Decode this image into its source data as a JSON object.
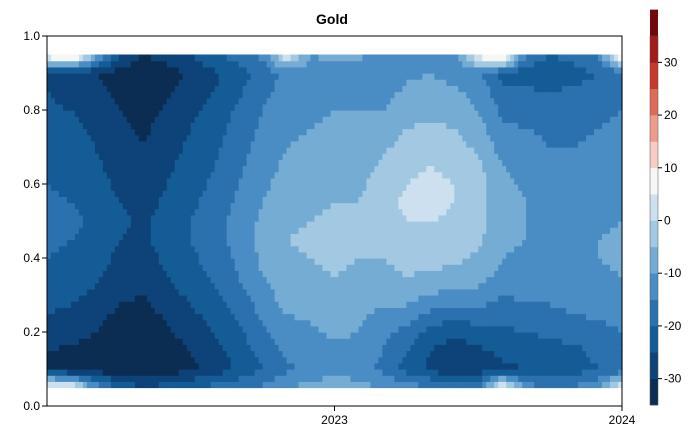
{
  "chart_data": {
    "type": "heatmap",
    "title": "Gold",
    "xlabel": "",
    "ylabel": "",
    "x_domain": [
      "2022-01",
      "2024-01"
    ],
    "ylim": [
      0.0,
      1.0
    ],
    "x_ticks": [
      {
        "value": "2023-01",
        "label": "2023"
      },
      {
        "value": "2024-01",
        "label": "2024"
      }
    ],
    "y_ticks": [
      {
        "value": 0.0,
        "label": "0.0"
      },
      {
        "value": 0.2,
        "label": "0.2"
      },
      {
        "value": 0.4,
        "label": "0.4"
      },
      {
        "value": 0.6,
        "label": "0.6"
      },
      {
        "value": 0.8,
        "label": "0.8"
      },
      {
        "value": 1.0,
        "label": "1.0"
      }
    ],
    "data_y_range": [
      0.05,
      0.95
    ],
    "colorbar": {
      "range": [
        -35,
        35
      ],
      "ticks": [
        -30,
        -20,
        -10,
        0,
        10,
        20,
        30
      ],
      "tick_labels": [
        "-30",
        "-20",
        "-10",
        "0",
        "10",
        "20",
        "30"
      ],
      "step": 5,
      "palette": [
        "#0b2d52",
        "#0d4378",
        "#145c96",
        "#2a71ae",
        "#4a8dc4",
        "#74acd4",
        "#a3c8e2",
        "#cde0ef",
        "#f6f6f6",
        "#f6ccc4",
        "#eb9c8a",
        "#dc6b57",
        "#c63a2c",
        "#a41b1c",
        "#700a0c"
      ]
    },
    "grid_months": [
      "2022-01",
      "2022-02",
      "2022-03",
      "2022-04",
      "2022-05",
      "2022-06",
      "2022-07",
      "2022-08",
      "2022-09",
      "2022-10",
      "2022-11",
      "2022-12",
      "2023-01",
      "2023-02",
      "2023-03",
      "2023-04",
      "2023-05",
      "2023-06",
      "2023-07",
      "2023-08",
      "2023-09",
      "2023-10",
      "2023-11",
      "2023-12",
      "2024-01"
    ],
    "grid_y": [
      0.05,
      0.1,
      0.15,
      0.2,
      0.25,
      0.3,
      0.35,
      0.4,
      0.45,
      0.5,
      0.55,
      0.6,
      0.65,
      0.7,
      0.75,
      0.8,
      0.85,
      0.9,
      0.95
    ],
    "values": [
      [
        12,
        -30,
        -30,
        -27,
        -25,
        -23,
        -21,
        -20,
        -19,
        -18,
        -19,
        -20,
        -21,
        -22,
        -23,
        -24,
        -25,
        -26,
        10
      ],
      [
        8,
        -32,
        -31,
        -28,
        -26,
        -24,
        -22,
        -21,
        -20,
        -19,
        -20,
        -21,
        -22,
        -23,
        -24,
        -25,
        -27,
        -29,
        18
      ],
      [
        -10,
        -33,
        -32,
        -30,
        -28,
        -26,
        -24,
        -23,
        -22,
        -21,
        -22,
        -23,
        -24,
        -25,
        -26,
        -27,
        -29,
        -30,
        -5
      ],
      [
        -20,
        -34,
        -34,
        -33,
        -31,
        -29,
        -27,
        -26,
        -25,
        -24,
        -25,
        -26,
        -27,
        -28,
        -29,
        -30,
        -31,
        -32,
        -25
      ],
      [
        -25,
        -35,
        -34,
        -33,
        -32,
        -30,
        -28,
        -27,
        -26,
        -26,
        -27,
        -28,
        -29,
        -30,
        -31,
        -32,
        -33,
        -34,
        -30
      ],
      [
        -22,
        -33,
        -32,
        -31,
        -29,
        -27,
        -25,
        -24,
        -23,
        -23,
        -24,
        -25,
        -26,
        -27,
        -28,
        -29,
        -31,
        -32,
        -28
      ],
      [
        -20,
        -31,
        -30,
        -28,
        -26,
        -24,
        -22,
        -21,
        -20,
        -20,
        -21,
        -22,
        -23,
        -24,
        -25,
        -26,
        -28,
        -29,
        -25
      ],
      [
        -18,
        -28,
        -27,
        -25,
        -23,
        -21,
        -19,
        -18,
        -17,
        -17,
        -18,
        -19,
        -20,
        -21,
        -22,
        -23,
        -25,
        -26,
        -20
      ],
      [
        -16,
        -24,
        -23,
        -21,
        -19,
        -17,
        -15,
        -14,
        -13,
        -13,
        -14,
        -15,
        -16,
        -17,
        -18,
        -19,
        -21,
        -22,
        -18
      ],
      [
        -14,
        -20,
        -18,
        -16,
        -14,
        -12,
        -10,
        -9,
        -8,
        -9,
        -10,
        -11,
        -12,
        -13,
        -14,
        -15,
        -16,
        -18,
        -14
      ],
      [
        -10,
        -16,
        -14,
        -12,
        -10,
        -8,
        -7,
        -6,
        -5,
        -6,
        -7,
        -8,
        -9,
        -10,
        -11,
        -12,
        -13,
        -14,
        5
      ],
      [
        -8,
        -14,
        -13,
        -11,
        -9,
        -7,
        -6,
        -5,
        -4,
        -5,
        -6,
        -7,
        -8,
        -9,
        -10,
        -11,
        -12,
        -13,
        -10
      ],
      [
        -6,
        -12,
        -11,
        -9,
        -7,
        -6,
        -5,
        -4,
        -4,
        -4,
        -5,
        -6,
        -7,
        -8,
        -9,
        -10,
        -11,
        -12,
        -8
      ],
      [
        -8,
        -13,
        -12,
        -10,
        -9,
        -7,
        -6,
        -5,
        -4,
        -4,
        -5,
        -6,
        -7,
        -8,
        -9,
        -10,
        -11,
        -12,
        -9
      ],
      [
        -10,
        -16,
        -15,
        -13,
        -11,
        -9,
        -7,
        -5,
        -3,
        -2,
        -2,
        -3,
        -4,
        -6,
        -8,
        -10,
        -12,
        -14,
        -12
      ],
      [
        -12,
        -22,
        -20,
        -17,
        -12,
        -8,
        -5,
        -3,
        -1,
        0,
        1,
        0,
        -1,
        -3,
        -5,
        -7,
        -9,
        -11,
        -10
      ],
      [
        -14,
        -26,
        -25,
        -22,
        -16,
        -10,
        -6,
        -3,
        -1,
        0,
        2,
        1,
        0,
        -2,
        -4,
        -6,
        -8,
        -10,
        -12
      ],
      [
        -16,
        -30,
        -28,
        -24,
        -18,
        -12,
        -7,
        -4,
        -2,
        -1,
        0,
        0,
        -1,
        -3,
        -5,
        -7,
        -9,
        -12,
        -14
      ],
      [
        -18,
        -28,
        -26,
        -22,
        -17,
        -12,
        -8,
        -6,
        -4,
        -3,
        -3,
        -3,
        -4,
        -6,
        -8,
        -10,
        -12,
        -14,
        8
      ],
      [
        10,
        -26,
        -24,
        -21,
        -18,
        -15,
        -12,
        -10,
        -9,
        -8,
        -8,
        -9,
        -10,
        -12,
        -14,
        -16,
        -18,
        -22,
        15
      ],
      [
        -12,
        -25,
        -23,
        -20,
        -17,
        -14,
        -12,
        -11,
        -10,
        -10,
        -10,
        -11,
        -12,
        -13,
        -15,
        -17,
        -19,
        -23,
        -15
      ],
      [
        -16,
        -24,
        -22,
        -19,
        -16,
        -14,
        -12,
        -11,
        -11,
        -11,
        -12,
        -13,
        -14,
        -15,
        -16,
        -18,
        -20,
        -24,
        -20
      ],
      [
        -14,
        -22,
        -21,
        -18,
        -15,
        -13,
        -12,
        -11,
        -11,
        -12,
        -13,
        -14,
        -14,
        -15,
        -16,
        -17,
        -19,
        -22,
        -18
      ],
      [
        -10,
        -20,
        -19,
        -17,
        -14,
        -12,
        -11,
        -10,
        -10,
        -11,
        -12,
        -13,
        -13,
        -14,
        -15,
        -16,
        -18,
        -20,
        -14
      ],
      [
        6,
        -18,
        -17,
        -15,
        -13,
        -11,
        -10,
        -9,
        -9,
        -10,
        -11,
        -12,
        -12,
        -13,
        -14,
        -15,
        -16,
        -18,
        12
      ]
    ]
  }
}
